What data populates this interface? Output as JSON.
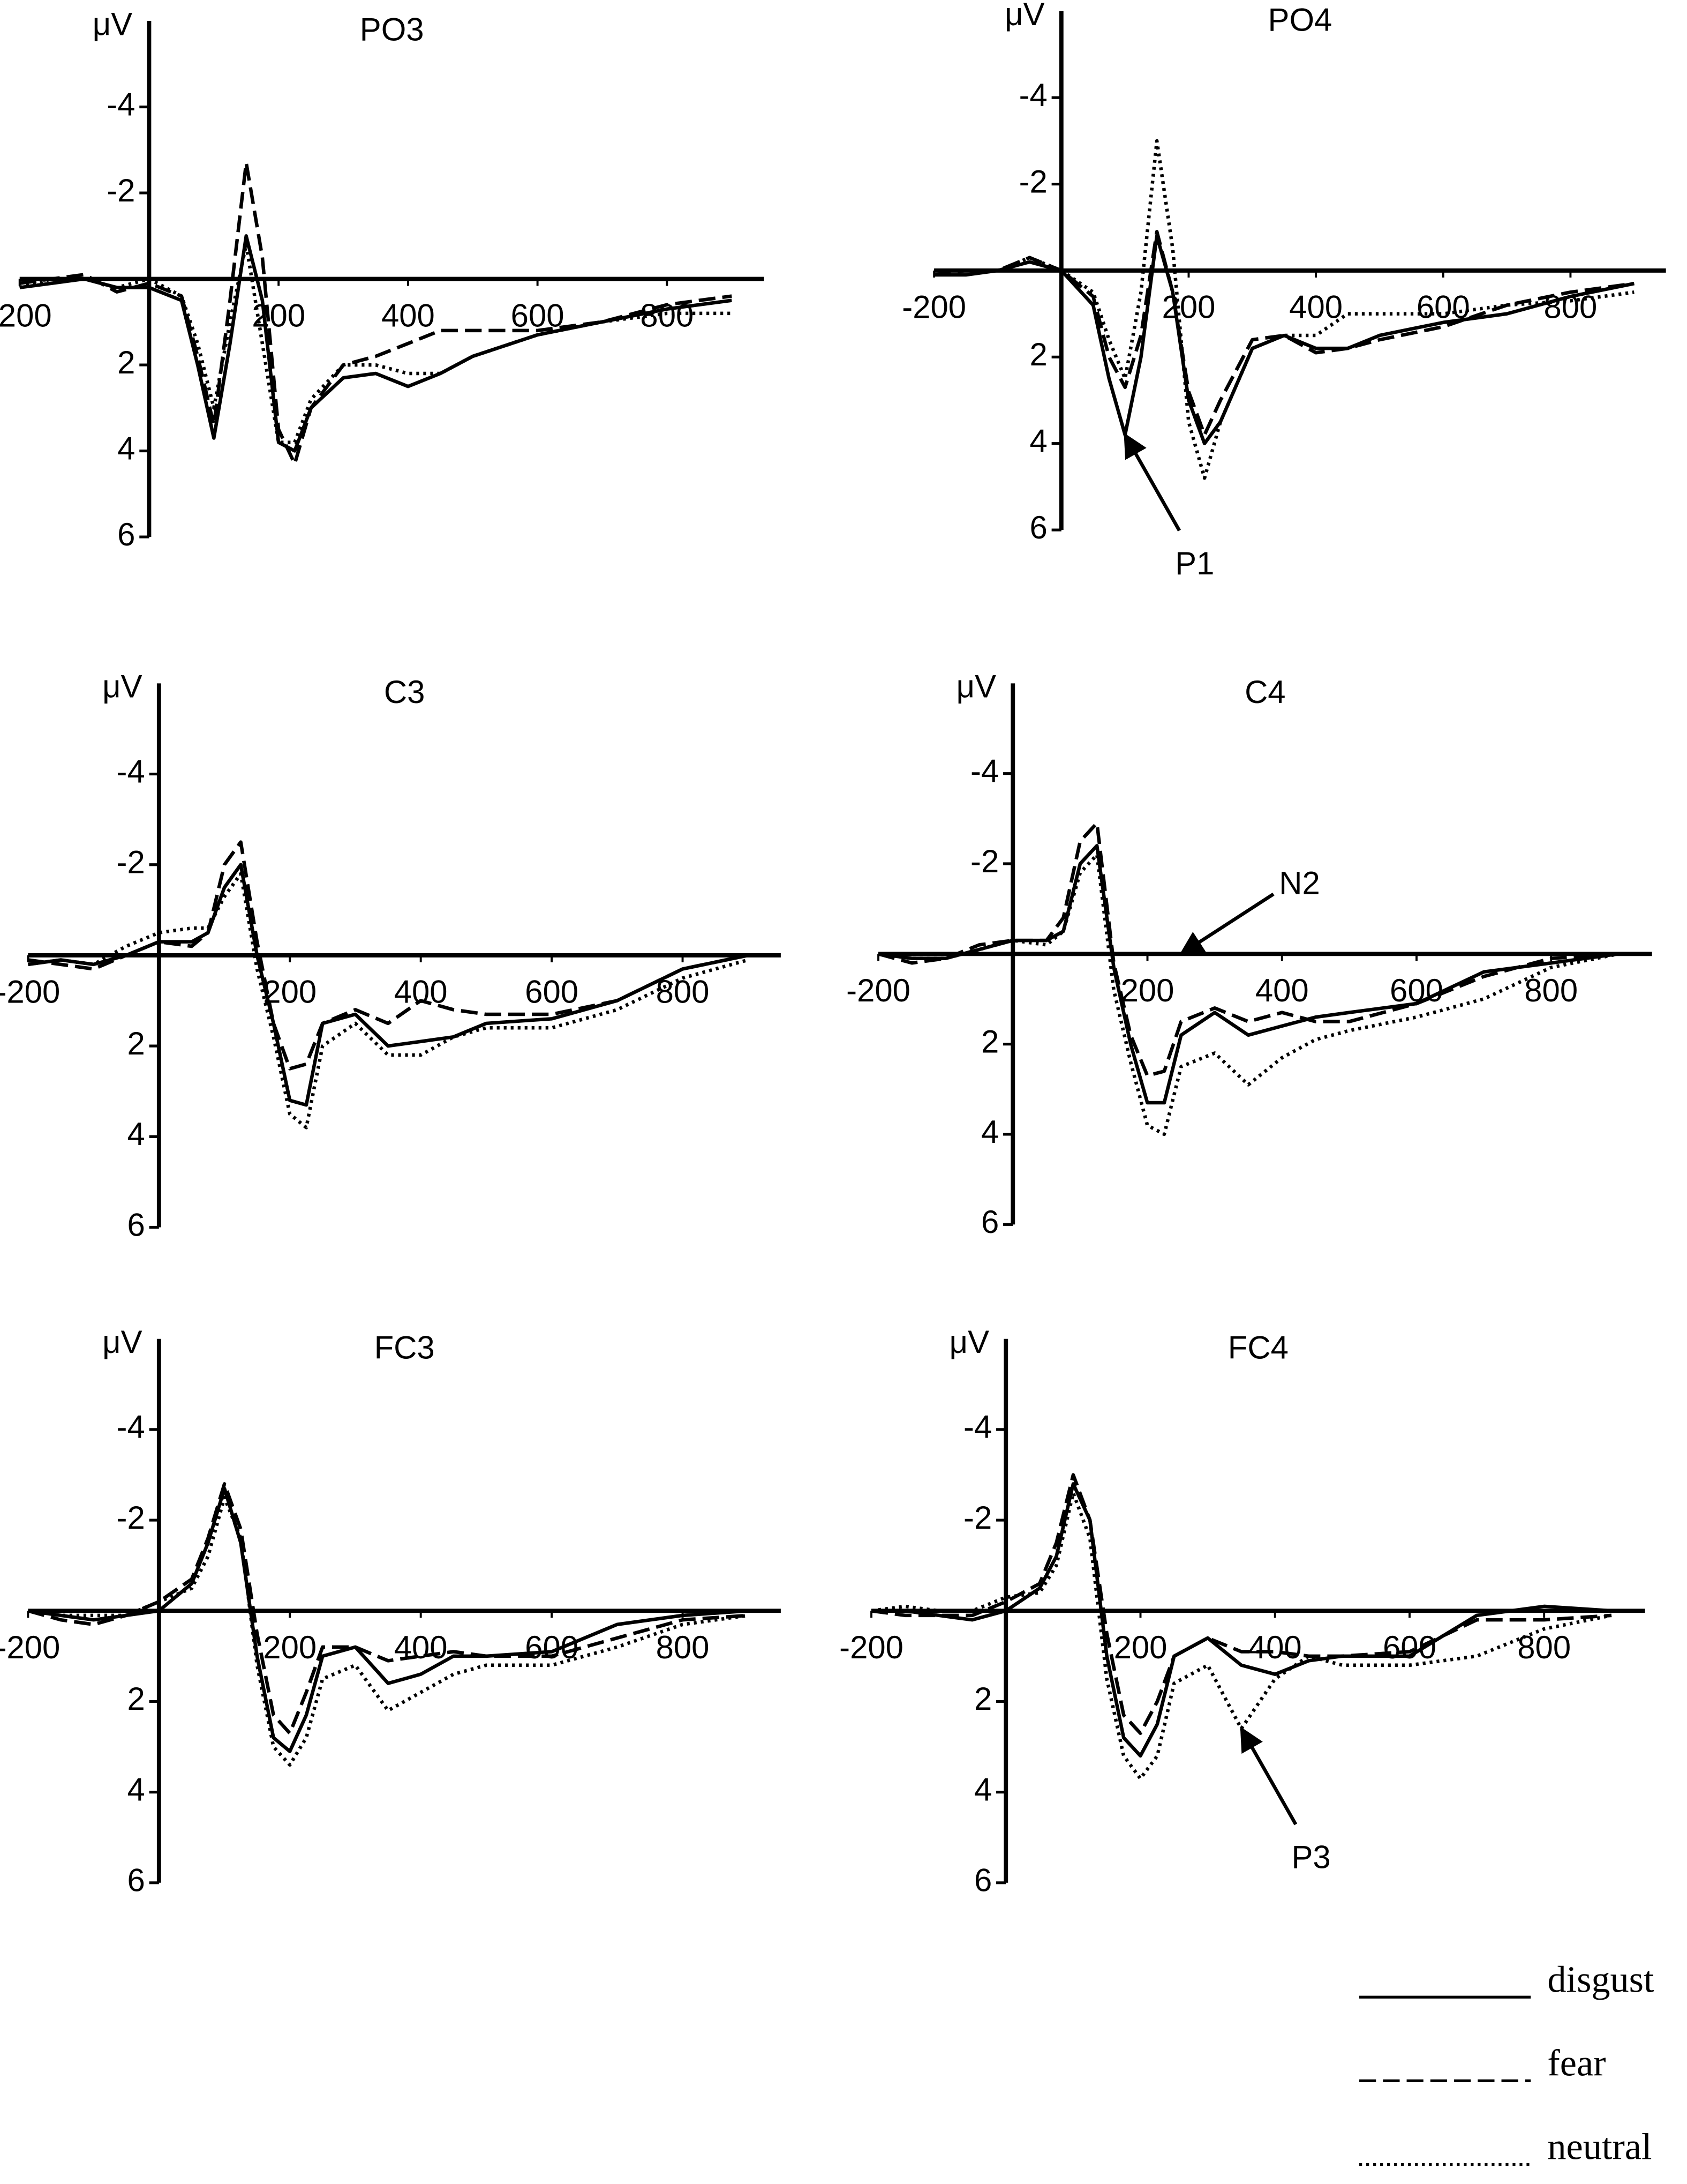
{
  "chart_data": [
    {
      "type": "line",
      "title": "PO3",
      "y_label": "μV",
      "invert_y": true,
      "xlim": [
        -200,
        950
      ],
      "ylim": [
        -6,
        6
      ],
      "xticks": [
        -200,
        200,
        400,
        600,
        800
      ],
      "yticks": [
        -4,
        -2,
        2,
        4,
        6
      ],
      "x": [
        -200,
        -150,
        -100,
        -50,
        0,
        50,
        75,
        100,
        125,
        150,
        175,
        200,
        225,
        250,
        300,
        350,
        400,
        450,
        500,
        600,
        700,
        800,
        900
      ],
      "series": [
        {
          "name": "disgust",
          "color": "#000000",
          "dash": "none",
          "values": [
            0.2,
            0.1,
            0.0,
            0.2,
            0.2,
            0.5,
            2.0,
            3.7,
            1.5,
            -1.0,
            0.5,
            3.8,
            4.0,
            3.0,
            2.3,
            2.2,
            2.5,
            2.2,
            1.8,
            1.3,
            1.0,
            0.7,
            0.5
          ]
        },
        {
          "name": "fear",
          "color": "#000000",
          "dash": "12 5",
          "values": [
            0.1,
            0.0,
            -0.1,
            0.3,
            0.1,
            0.4,
            1.8,
            3.4,
            0.5,
            -2.7,
            -0.5,
            3.5,
            4.3,
            3.0,
            2.0,
            1.8,
            1.5,
            1.2,
            1.2,
            1.2,
            1.0,
            0.6,
            0.4
          ]
        },
        {
          "name": "neutral",
          "color": "#000000",
          "dash": "2 3",
          "values": [
            0.2,
            0.0,
            0.0,
            0.2,
            0.0,
            0.4,
            1.5,
            3.0,
            1.0,
            -0.8,
            1.5,
            3.8,
            3.8,
            2.8,
            2.0,
            2.0,
            2.2,
            2.2,
            1.8,
            1.3,
            1.0,
            0.8,
            0.8
          ]
        }
      ]
    },
    {
      "type": "line",
      "title": "PO4",
      "y_label": "μV",
      "invert_y": true,
      "xlim": [
        -200,
        950
      ],
      "ylim": [
        -6,
        6
      ],
      "xticks": [
        -200,
        200,
        400,
        600,
        800
      ],
      "yticks": [
        -4,
        -2,
        2,
        4,
        6
      ],
      "x": [
        -200,
        -150,
        -100,
        -50,
        0,
        50,
        75,
        100,
        125,
        150,
        175,
        200,
        225,
        250,
        300,
        350,
        400,
        450,
        500,
        600,
        700,
        800,
        900
      ],
      "series": [
        {
          "color": "#000000",
          "dash": "none",
          "values": [
            0.1,
            0.1,
            0.0,
            -0.2,
            0.0,
            0.8,
            2.5,
            3.8,
            2.0,
            -0.8,
            0.5,
            3.0,
            4.0,
            3.5,
            1.8,
            1.5,
            1.8,
            1.8,
            1.5,
            1.2,
            1.0,
            0.6,
            0.3
          ]
        },
        {
          "color": "#000000",
          "dash": "12 5",
          "values": [
            0.1,
            0.0,
            0.0,
            -0.3,
            0.0,
            0.6,
            2.0,
            2.7,
            1.5,
            -0.9,
            0.5,
            2.8,
            3.8,
            3.0,
            1.6,
            1.5,
            1.9,
            1.8,
            1.6,
            1.3,
            0.8,
            0.5,
            0.3
          ]
        },
        {
          "color": "#000000",
          "dash": "2 3",
          "values": [
            0.0,
            0.0,
            0.0,
            -0.3,
            0.0,
            0.5,
            1.6,
            2.5,
            0.5,
            -3.0,
            -0.5,
            3.5,
            4.8,
            3.5,
            1.8,
            1.5,
            1.5,
            1.0,
            1.0,
            1.0,
            0.8,
            0.7,
            0.5
          ]
        }
      ],
      "annotations": [
        {
          "text": "P1",
          "x": 100,
          "y": 3.8
        }
      ]
    },
    {
      "type": "line",
      "title": "C3",
      "y_label": "μV",
      "invert_y": true,
      "xlim": [
        -200,
        950
      ],
      "ylim": [
        -6,
        6
      ],
      "xticks": [
        -200,
        200,
        400,
        600,
        800
      ],
      "yticks": [
        -4,
        -2,
        2,
        4,
        6
      ],
      "x": [
        -200,
        -150,
        -100,
        -50,
        0,
        50,
        75,
        100,
        125,
        150,
        175,
        200,
        225,
        250,
        300,
        350,
        400,
        450,
        500,
        600,
        700,
        800,
        900
      ],
      "series": [
        {
          "color": "#000000",
          "dash": "none",
          "values": [
            0.2,
            0.1,
            0.2,
            0.0,
            -0.3,
            -0.3,
            -0.5,
            -1.5,
            -2.0,
            0.0,
            1.5,
            3.2,
            3.3,
            1.5,
            1.3,
            2.0,
            1.9,
            1.8,
            1.5,
            1.4,
            1.0,
            0.3,
            0.0
          ]
        },
        {
          "color": "#000000",
          "dash": "12 5",
          "values": [
            0.1,
            0.2,
            0.3,
            0.0,
            -0.3,
            -0.2,
            -0.5,
            -2.0,
            -2.5,
            -0.3,
            1.5,
            2.5,
            2.4,
            1.5,
            1.2,
            1.5,
            1.0,
            1.2,
            1.3,
            1.3,
            1.0,
            0.3,
            0.0
          ]
        },
        {
          "color": "#000000",
          "dash": "2 3",
          "values": [
            0.2,
            0.1,
            0.2,
            -0.2,
            -0.5,
            -0.6,
            -0.6,
            -1.3,
            -1.8,
            0.3,
            1.8,
            3.5,
            3.8,
            2.0,
            1.5,
            2.2,
            2.2,
            1.8,
            1.6,
            1.6,
            1.2,
            0.5,
            0.1
          ]
        }
      ]
    },
    {
      "type": "line",
      "title": "C4",
      "y_label": "μV",
      "invert_y": true,
      "xlim": [
        -200,
        950
      ],
      "ylim": [
        -6,
        6
      ],
      "xticks": [
        -200,
        200,
        400,
        600,
        800
      ],
      "yticks": [
        -4,
        -2,
        2,
        4,
        6
      ],
      "x": [
        -200,
        -150,
        -100,
        -50,
        0,
        50,
        75,
        100,
        125,
        150,
        175,
        200,
        225,
        250,
        300,
        350,
        400,
        450,
        500,
        600,
        700,
        800,
        900
      ],
      "series": [
        {
          "color": "#000000",
          "dash": "none",
          "values": [
            0.0,
            0.1,
            0.1,
            -0.1,
            -0.3,
            -0.3,
            -0.5,
            -2.0,
            -2.4,
            0.3,
            2.0,
            3.3,
            3.3,
            1.8,
            1.3,
            1.8,
            1.6,
            1.4,
            1.3,
            1.1,
            0.4,
            0.2,
            0.0
          ]
        },
        {
          "color": "#000000",
          "dash": "12 5",
          "values": [
            0.0,
            0.2,
            0.1,
            -0.2,
            -0.3,
            -0.3,
            -0.8,
            -2.5,
            -2.9,
            0.2,
            1.8,
            2.7,
            2.6,
            1.5,
            1.2,
            1.5,
            1.3,
            1.5,
            1.5,
            1.1,
            0.5,
            0.1,
            0.0
          ]
        },
        {
          "color": "#000000",
          "dash": "2 3",
          "values": [
            0.0,
            0.1,
            0.1,
            -0.1,
            -0.3,
            -0.2,
            -0.5,
            -1.8,
            -2.2,
            0.8,
            2.4,
            3.8,
            4.0,
            2.5,
            2.2,
            2.9,
            2.3,
            1.9,
            1.7,
            1.4,
            1.0,
            0.3,
            0.0
          ]
        }
      ],
      "annotations": [
        {
          "text": "N2",
          "x": 250,
          "y": 0
        }
      ]
    },
    {
      "type": "line",
      "title": "FC3",
      "y_label": "μV",
      "invert_y": true,
      "xlim": [
        -200,
        950
      ],
      "ylim": [
        -6,
        6
      ],
      "xticks": [
        -200,
        200,
        400,
        600,
        800
      ],
      "yticks": [
        -4,
        -2,
        2,
        4,
        6
      ],
      "x": [
        -200,
        -150,
        -100,
        -50,
        0,
        50,
        75,
        100,
        125,
        150,
        175,
        200,
        225,
        250,
        300,
        350,
        400,
        450,
        500,
        600,
        700,
        800,
        900
      ],
      "series": [
        {
          "color": "#000000",
          "dash": "none",
          "values": [
            0.0,
            0.1,
            0.2,
            0.1,
            0.0,
            -0.6,
            -1.5,
            -2.7,
            -1.5,
            1.0,
            2.8,
            3.1,
            2.3,
            1.0,
            0.8,
            1.6,
            1.4,
            1.0,
            1.0,
            0.9,
            0.3,
            0.1,
            0.0
          ]
        },
        {
          "color": "#000000",
          "dash": "12 5",
          "values": [
            0.0,
            0.2,
            0.3,
            0.1,
            -0.2,
            -0.7,
            -1.6,
            -2.8,
            -1.8,
            0.5,
            2.3,
            2.7,
            1.8,
            0.8,
            0.8,
            1.1,
            1.0,
            0.9,
            1.0,
            1.0,
            0.6,
            0.2,
            0.1
          ]
        },
        {
          "color": "#000000",
          "dash": "2 3",
          "values": [
            0.0,
            0.1,
            0.1,
            0.1,
            -0.2,
            -0.5,
            -1.2,
            -2.5,
            -1.6,
            1.2,
            3.0,
            3.4,
            2.8,
            1.5,
            1.2,
            2.2,
            1.8,
            1.4,
            1.2,
            1.2,
            0.8,
            0.3,
            0.1
          ]
        }
      ]
    },
    {
      "type": "line",
      "title": "FC4",
      "y_label": "μV",
      "invert_y": true,
      "xlim": [
        -200,
        950
      ],
      "ylim": [
        -6,
        6
      ],
      "xticks": [
        -200,
        200,
        400,
        600,
        800
      ],
      "yticks": [
        -4,
        -2,
        2,
        4,
        6
      ],
      "x": [
        -200,
        -150,
        -100,
        -50,
        0,
        50,
        75,
        100,
        125,
        150,
        175,
        200,
        225,
        250,
        300,
        350,
        400,
        450,
        500,
        600,
        700,
        800,
        900
      ],
      "series": [
        {
          "color": "#000000",
          "dash": "none",
          "values": [
            0.0,
            0.0,
            0.1,
            0.2,
            0.0,
            -0.5,
            -1.2,
            -2.8,
            -2.0,
            1.0,
            2.8,
            3.2,
            2.5,
            1.0,
            0.6,
            1.2,
            1.4,
            1.1,
            1.0,
            1.0,
            0.1,
            -0.1,
            0.0
          ]
        },
        {
          "color": "#000000",
          "dash": "12 5",
          "values": [
            0.0,
            0.1,
            0.1,
            0.1,
            -0.2,
            -0.6,
            -1.5,
            -3.0,
            -2.0,
            0.5,
            2.3,
            2.7,
            2.0,
            1.0,
            0.6,
            0.9,
            0.9,
            1.0,
            1.0,
            0.9,
            0.2,
            0.2,
            0.1
          ]
        },
        {
          "color": "#000000",
          "dash": "2 3",
          "values": [
            0.0,
            -0.1,
            0.0,
            0.0,
            -0.3,
            -0.4,
            -1.0,
            -2.6,
            -1.6,
            1.5,
            3.2,
            3.7,
            3.2,
            1.6,
            1.2,
            2.6,
            1.5,
            1.0,
            1.2,
            1.2,
            1.0,
            0.4,
            0.1
          ]
        }
      ],
      "annotations": [
        {
          "text": "P3",
          "x": 350,
          "y": 2.6
        }
      ]
    }
  ]
}
